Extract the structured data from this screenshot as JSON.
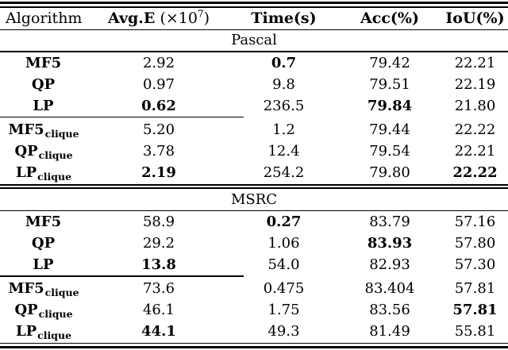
{
  "page": {
    "background_color": "#ffffff",
    "text_color": "#000000",
    "rule_color": "#000000"
  },
  "table": {
    "header": {
      "algorithm": "Algorithm",
      "avg_e_bold": "Avg.E",
      "avg_e_open": "(×10",
      "avg_e_sup": "7",
      "avg_e_close": ")",
      "time": "Time(s)",
      "acc": "Acc(%)",
      "iou": "IoU(%)"
    },
    "sections": [
      {
        "title": "Pascal",
        "rows": [
          {
            "label": "MF5",
            "sub": "",
            "cells": [
              {
                "v": "2.92",
                "b": false
              },
              {
                "v": "0.7",
                "b": true
              },
              {
                "v": "79.42",
                "b": false
              },
              {
                "v": "22.21",
                "b": false
              }
            ]
          },
          {
            "label": "QP",
            "sub": "",
            "cells": [
              {
                "v": "0.97",
                "b": false
              },
              {
                "v": "9.8",
                "b": false
              },
              {
                "v": "79.51",
                "b": false
              },
              {
                "v": "22.19",
                "b": false
              }
            ]
          },
          {
            "label": "LP",
            "sub": "",
            "cells": [
              {
                "v": "0.62",
                "b": true
              },
              {
                "v": "236.5",
                "b": false
              },
              {
                "v": "79.84",
                "b": true
              },
              {
                "v": "21.80",
                "b": false
              }
            ]
          },
          {
            "label": "MF5",
            "sub": "clique",
            "cells": [
              {
                "v": "5.20",
                "b": false
              },
              {
                "v": "1.2",
                "b": false
              },
              {
                "v": "79.44",
                "b": false
              },
              {
                "v": "22.22",
                "b": false
              }
            ]
          },
          {
            "label": "QP",
            "sub": "clique",
            "cells": [
              {
                "v": "3.78",
                "b": false
              },
              {
                "v": "12.4",
                "b": false
              },
              {
                "v": "79.54",
                "b": false
              },
              {
                "v": "22.21",
                "b": false
              }
            ]
          },
          {
            "label": "LP",
            "sub": "clique",
            "cells": [
              {
                "v": "2.19",
                "b": true
              },
              {
                "v": "254.2",
                "b": false
              },
              {
                "v": "79.80",
                "b": false
              },
              {
                "v": "22.22",
                "b": true
              }
            ]
          }
        ]
      },
      {
        "title": "MSRC",
        "rows": [
          {
            "label": "MF5",
            "sub": "",
            "cells": [
              {
                "v": "58.9",
                "b": false
              },
              {
                "v": "0.27",
                "b": true
              },
              {
                "v": "83.79",
                "b": false
              },
              {
                "v": "57.16",
                "b": false
              }
            ]
          },
          {
            "label": "QP",
            "sub": "",
            "cells": [
              {
                "v": "29.2",
                "b": false
              },
              {
                "v": "1.06",
                "b": false
              },
              {
                "v": "83.93",
                "b": true
              },
              {
                "v": "57.80",
                "b": false
              }
            ]
          },
          {
            "label": "LP",
            "sub": "",
            "cells": [
              {
                "v": "13.8",
                "b": true
              },
              {
                "v": "54.0",
                "b": false
              },
              {
                "v": "82.93",
                "b": false
              },
              {
                "v": "57.30",
                "b": false
              }
            ]
          },
          {
            "label": "MF5",
            "sub": "clique",
            "cells": [
              {
                "v": "73.6",
                "b": false
              },
              {
                "v": "0.475",
                "b": false
              },
              {
                "v": "83.404",
                "b": false
              },
              {
                "v": "57.81",
                "b": false
              }
            ]
          },
          {
            "label": "QP",
            "sub": "clique",
            "cells": [
              {
                "v": "46.1",
                "b": false
              },
              {
                "v": "1.75",
                "b": false
              },
              {
                "v": "83.56",
                "b": false
              },
              {
                "v": "57.81",
                "b": true
              }
            ]
          },
          {
            "label": "LP",
            "sub": "clique",
            "cells": [
              {
                "v": "44.1",
                "b": true
              },
              {
                "v": "49.3",
                "b": false
              },
              {
                "v": "81.49",
                "b": false
              },
              {
                "v": "55.81",
                "b": false
              }
            ]
          }
        ]
      }
    ]
  },
  "chart_data": {
    "type": "table",
    "title": "Algorithm comparison on Pascal and MSRC",
    "columns": [
      "Algorithm",
      "Avg.E (×10⁷)",
      "Time(s)",
      "Acc(%)",
      "IoU(%)"
    ],
    "sections": [
      {
        "name": "Pascal",
        "rows": [
          [
            "MF5",
            2.92,
            0.7,
            79.42,
            22.21
          ],
          [
            "QP",
            0.97,
            9.8,
            79.51,
            22.19
          ],
          [
            "LP",
            0.62,
            236.5,
            79.84,
            21.8
          ],
          [
            "MF5_clique",
            5.2,
            1.2,
            79.44,
            22.22
          ],
          [
            "QP_clique",
            3.78,
            12.4,
            79.54,
            22.21
          ],
          [
            "LP_clique",
            2.19,
            254.2,
            79.8,
            22.22
          ]
        ]
      },
      {
        "name": "MSRC",
        "rows": [
          [
            "MF5",
            58.9,
            0.27,
            83.79,
            57.16
          ],
          [
            "QP",
            29.2,
            1.06,
            83.93,
            57.8
          ],
          [
            "LP",
            13.8,
            54.0,
            82.93,
            57.3
          ],
          [
            "MF5_clique",
            73.6,
            0.475,
            83.404,
            57.81
          ],
          [
            "QP_clique",
            46.1,
            1.75,
            83.56,
            57.81
          ],
          [
            "LP_clique",
            44.1,
            49.3,
            81.49,
            55.81
          ]
        ]
      }
    ]
  }
}
